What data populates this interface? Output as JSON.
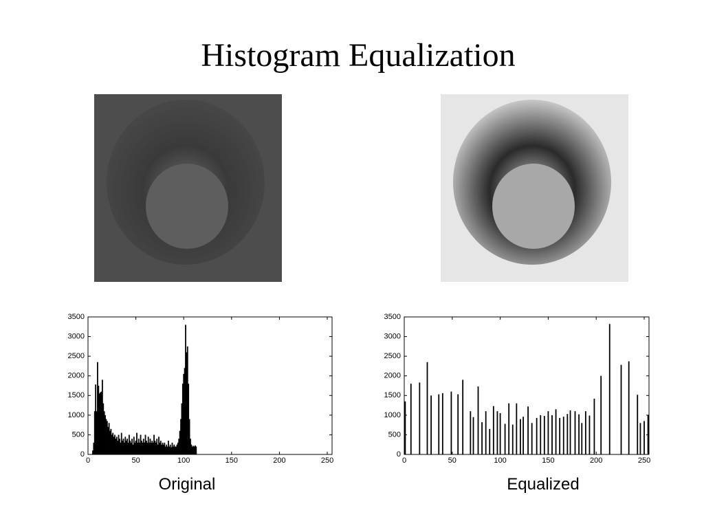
{
  "title": "Histogram Equalization",
  "chart_data": [
    {
      "type": "bar",
      "title": "Original",
      "color": "#000000",
      "xlim": [
        0,
        255
      ],
      "ylim": [
        0,
        3500
      ],
      "xticks": [
        0,
        50,
        100,
        150,
        200,
        250
      ],
      "yticks": [
        0,
        500,
        1000,
        1500,
        2000,
        2500,
        3000,
        3500
      ],
      "x": [
        5,
        6,
        7,
        8,
        9,
        10,
        11,
        12,
        13,
        14,
        15,
        16,
        17,
        18,
        19,
        20,
        21,
        22,
        23,
        24,
        25,
        26,
        27,
        28,
        29,
        30,
        31,
        32,
        33,
        34,
        35,
        36,
        37,
        38,
        39,
        40,
        41,
        42,
        43,
        44,
        45,
        46,
        47,
        48,
        49,
        50,
        51,
        52,
        53,
        54,
        55,
        56,
        57,
        58,
        59,
        60,
        61,
        62,
        63,
        64,
        65,
        66,
        67,
        68,
        69,
        70,
        71,
        72,
        73,
        74,
        75,
        76,
        77,
        78,
        79,
        80,
        81,
        82,
        83,
        84,
        85,
        86,
        87,
        88,
        89,
        90,
        91,
        92,
        93,
        94,
        95,
        96,
        97,
        98,
        99,
        100,
        101,
        102,
        103,
        104,
        105,
        106,
        107,
        108,
        109,
        110,
        111,
        112,
        113
      ],
      "values": [
        100,
        300,
        1100,
        1780,
        1100,
        2350,
        1750,
        1550,
        1580,
        1600,
        1900,
        1300,
        1100,
        1000,
        900,
        850,
        700,
        800,
        600,
        650,
        500,
        550,
        450,
        500,
        400,
        450,
        350,
        500,
        400,
        300,
        550,
        350,
        400,
        300,
        450,
        350,
        400,
        300,
        500,
        350,
        300,
        400,
        250,
        450,
        300,
        350,
        550,
        300,
        400,
        300,
        500,
        350,
        300,
        400,
        300,
        500,
        350,
        300,
        450,
        300,
        400,
        300,
        350,
        300,
        500,
        350,
        300,
        400,
        250,
        450,
        300,
        350,
        250,
        300,
        250,
        300,
        200,
        250,
        200,
        350,
        200,
        250,
        180,
        300,
        200,
        250,
        200,
        200,
        250,
        300,
        400,
        600,
        900,
        1300,
        1800,
        2050,
        2200,
        3300,
        2600,
        2750,
        1800,
        900,
        400,
        250,
        200,
        220,
        200,
        230,
        200
      ]
    },
    {
      "type": "bar",
      "title": "Equalized",
      "color": "#000000",
      "xlim": [
        0,
        255
      ],
      "ylim": [
        0,
        3500
      ],
      "xticks": [
        0,
        50,
        100,
        150,
        200,
        250
      ],
      "yticks": [
        0,
        500,
        1000,
        1500,
        2000,
        2500,
        3000,
        3500
      ],
      "x": [
        1,
        7,
        16,
        24,
        28,
        36,
        40,
        49,
        56,
        61,
        69,
        72,
        77,
        81,
        85,
        89,
        93,
        97,
        100,
        105,
        109,
        113,
        117,
        121,
        124,
        129,
        133,
        138,
        142,
        146,
        150,
        154,
        158,
        162,
        166,
        170,
        173,
        178,
        182,
        185,
        189,
        193,
        198,
        205,
        214,
        226,
        234,
        243,
        246,
        250,
        254
      ],
      "values": [
        1350,
        1800,
        1830,
        2350,
        1500,
        1530,
        1560,
        1600,
        1530,
        1900,
        1100,
        950,
        1730,
        820,
        1100,
        650,
        1230,
        1100,
        1050,
        780,
        1300,
        760,
        1300,
        900,
        960,
        1220,
        800,
        930,
        1000,
        980,
        1100,
        1000,
        1150,
        930,
        960,
        1030,
        1120,
        1100,
        1020,
        800,
        1100,
        990,
        1420,
        2000,
        3320,
        2280,
        2370,
        1520,
        800,
        850,
        1000
      ]
    }
  ]
}
